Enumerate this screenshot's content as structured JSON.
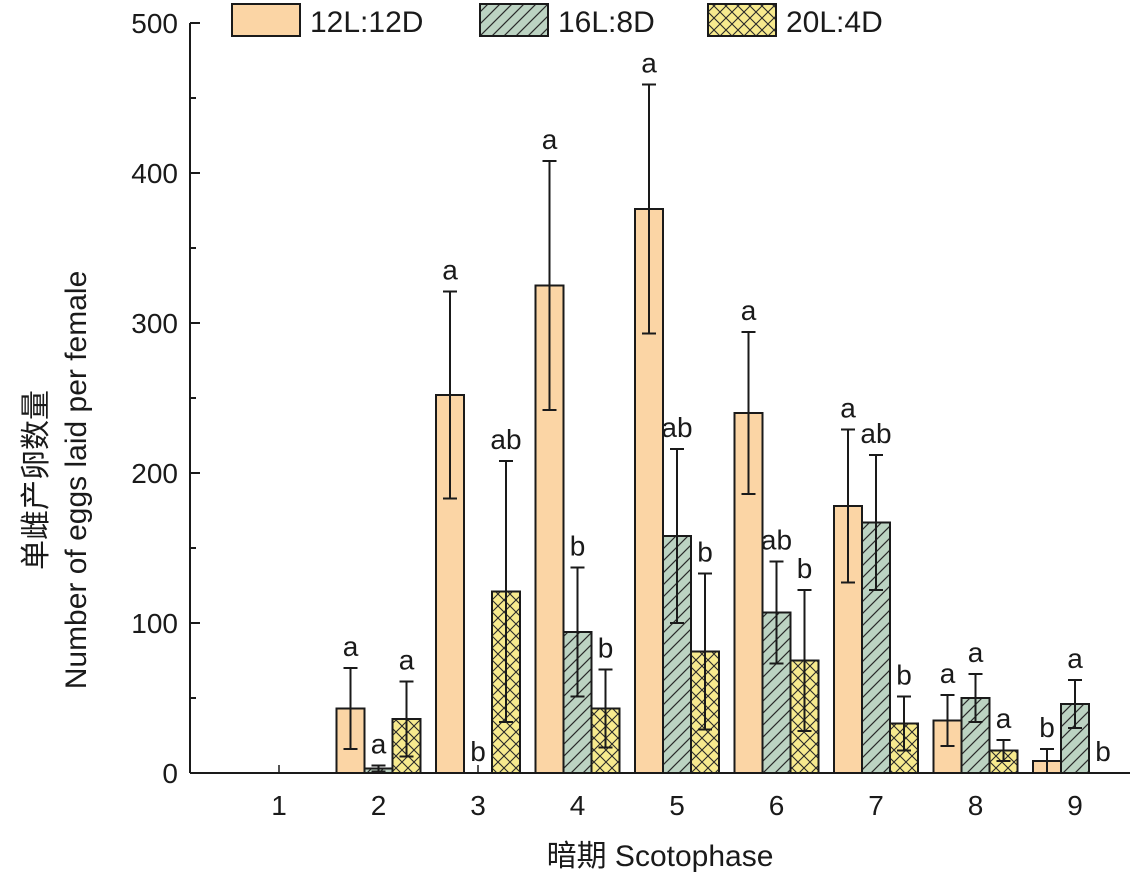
{
  "chart_data": {
    "type": "bar",
    "title": "",
    "xlabel": "暗期 Scotophase",
    "ylabel_lines": [
      "单雌产卵数量",
      "Number of eggs laid per female"
    ],
    "categories": [
      "1",
      "2",
      "3",
      "4",
      "5",
      "6",
      "7",
      "8",
      "9"
    ],
    "ylim": [
      0,
      500
    ],
    "yticks": [
      0,
      100,
      200,
      300,
      400,
      500
    ],
    "grid": false,
    "legend_position": "top",
    "series": [
      {
        "name": "12L:12D",
        "color": "#fbd5a5",
        "pattern": "solid",
        "values": [
          0,
          43,
          252,
          325,
          376,
          240,
          178,
          35,
          8
        ],
        "errors": [
          0,
          27,
          69,
          83,
          83,
          54,
          51,
          17,
          8
        ],
        "letters": [
          "",
          "a",
          "a",
          "a",
          "a",
          "a",
          "a",
          "a",
          "b"
        ]
      },
      {
        "name": "16L:8D",
        "color": "#bcd3c2",
        "pattern": "diagonal-hatch",
        "values": [
          0,
          3,
          0,
          94,
          158,
          107,
          167,
          50,
          46
        ],
        "errors": [
          0,
          2,
          0,
          43,
          58,
          34,
          45,
          16,
          16
        ],
        "letters": [
          "",
          "a",
          "b",
          "b",
          "ab",
          "ab",
          "ab",
          "a",
          "a"
        ]
      },
      {
        "name": "20L:4D",
        "color": "#f7ea8e",
        "pattern": "cross-hatch",
        "values": [
          0,
          36,
          121,
          43,
          81,
          75,
          33,
          15,
          0
        ],
        "errors": [
          0,
          25,
          87,
          26,
          52,
          47,
          18,
          7,
          0
        ],
        "letters": [
          "",
          "a",
          "ab",
          "b",
          "b",
          "b",
          "b",
          "a",
          "b"
        ]
      }
    ]
  }
}
